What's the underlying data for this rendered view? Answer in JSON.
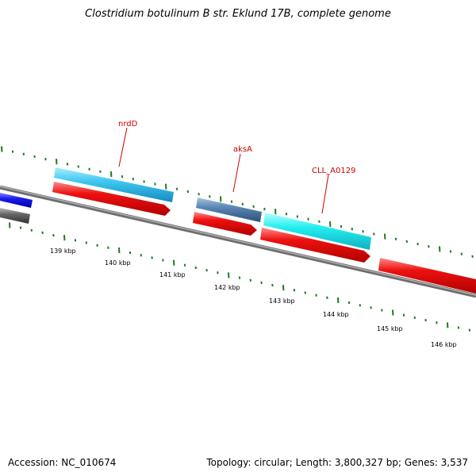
{
  "title": "Clostridium botulinum B str. Eklund 17B, complete genome",
  "footer": {
    "accession": "Accession: NC_010674",
    "stats": "Topology: circular; Length: 3,800,327 bp; Genes: 3,537"
  },
  "colors": {
    "backbone": "#8a8a8a",
    "tick": "#1f7a1f",
    "label": "#cc0000",
    "forward_red": "#ee1111",
    "sky_blue": "#3ec8f0",
    "steel_blue": "#5a86b4",
    "cyan": "#22eef0",
    "dark_blue": "#1a1aee",
    "dark_gray": "#666666"
  },
  "scale": {
    "unit": "kbp",
    "labels": [
      "139 kbp",
      "140 kbp",
      "141 kbp",
      "142 kbp",
      "143 kbp",
      "144 kbp",
      "145 kbp",
      "146 kbp"
    ]
  },
  "gene_labels": [
    {
      "text": "nrdD"
    },
    {
      "text": "aksA"
    },
    {
      "text": "CLL_A0129"
    }
  ]
}
